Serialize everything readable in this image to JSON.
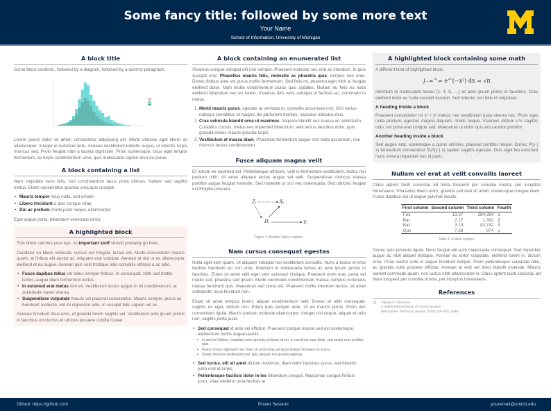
{
  "header": {
    "title": "Some fancy title: followed by some more text",
    "author": "Your Name",
    "institution": "School of Information, University of Michigan",
    "logo_text": "M",
    "colors": {
      "navy": "#00274c",
      "maize": "#ffcb05"
    }
  },
  "col1": {
    "block1": {
      "title": "A block title",
      "intro": "Some block contents, followed by a diagram, followed by a dummy paragraph.",
      "para": "Lorem ipsum dolor sit amet, consectetur adipiscing elit. Morbi ultricies eget libero ac ullamcorper. Integer et euismod ante. Aenean vestibulum lobortis augue, ut lobortis turpis rhoncus sed. Proin feugiat nibh a lacinia dignissim. Proin scelerisque, risus eget tempor fermentum, ex turpis condimentum urna, quis malesuada sapien arcu eu purus."
    },
    "block2": {
      "title": "A block containing a list",
      "para": "Nam vulputate nunc felis, non condimentum lacus porta ultrices. Nullam sed sagittis metus. Etiam consectetur gravida urna quis suscipit.",
      "items": [
        {
          "bold": "Mauris tempor",
          "text": " risus nulla, sed ornare"
        },
        {
          "bold": "Libero tincidunt",
          "text": " a duis congue vitae"
        },
        {
          "bold": "Dui ac pretium",
          "text": " morbi justo neque, ullamcorper"
        }
      ],
      "after": "Eget augue porta, bibendum venenatis tortor."
    },
    "block3": {
      "title": "A highlighted block",
      "p1a": "This block catches your eye, so ",
      "p1b": "important stuff",
      "p1c": " should probably go here.",
      "p2": "Curabitur eu libero vehicula, cursus est fringilla, luctus est. Morbi consectetur mauris quam, at finibus elit auctor ac. Aliquam erat volutpat. Aenean at nisl ut ex ullamcorper eleifend et eu augue. Aenean quis velit tristique odio convallis ultrices a ac odio.",
      "items": [
        {
          "bold": "Fusce dapibus tellus",
          "text": " vel tellus semper finibus. In consequat, nibh sed mattis luctus, augue diam fermentum lectus."
        },
        {
          "bold": "In euismod erat metus",
          "text": " non ex. Vestibulum luctus augue in mi condimentum, at sollicitudin lorem viverra."
        },
        {
          "bold": "Suspendisse vulputate",
          "text": " mauris vel placerat consectetur. Mauris semper, purus ac hendrerit molestie, elit mi dignissim odio, in suscipit felis sapien vel ex."
        }
      ],
      "p3": "Aenean tincidunt risus eros, at gravida lorem sagittis vel. Vestibulum ante ipsum primis in faucibus orci luctus et ultrices posuere cubilia Curae."
    }
  },
  "col2": {
    "block1": {
      "title": "A block containing an enumerated list",
      "pa": "Vivamus congue volutpat elit non semper. Praesent molestie nec erat ac interdum. In quis suscipit erat. ",
      "pb": "Phasellus mauris felis, molestie ac pharetra quis",
      "pc": ", tempus nec ante. Donec finibus ante vel purus mollis fermentum. Sed felis mi, pharetra eget nibh a, feugiat eleifend dolor. Nam mollis condimentum purus quis sodales. Nullam eu felis eu nulla eleifend bibendum nec eu lorem. Vivamus felis velit, volutpat ut facilisis ac, commodo in metus.",
      "items": [
        {
          "bold": "Morbi mauris purus",
          "text": ", egestas at vehicula et, convallis accumsan orci. Orci varius natoque penatibus et magnis dis parturient montes, nascetur ridiculus mus."
        },
        {
          "bold": "Cras vehicula blandit urna ut maximus",
          "text": ". Aliquam blandit nec massa ac sollicitudin. Curabitur cursus, metus nec imperdiet bibendum, velit lectus faucibus dolor, quis gravida metus mauris gravida turpis."
        },
        {
          "bold": "Vestibulum et massa diam",
          "text": ". Phasellus fermentum augue non nulla accumsan, non rhoncus lectus condimentum."
        }
      ]
    },
    "block2": {
      "title": "Fusce aliquam magna velit",
      "para": "Et rutrum ex euismod vel. Pellentesque ultricies, velit in fermentum vestibulum, lectus nisi pretium nibh, sit amet aliquam lectus augue vel velit. Suspendisse rhoncus massa porttitor augue feugiat molestie. Sed molestie ut orci nec malesuada. Sed ultricies feugiat est fringilla posuere.",
      "diagram": {
        "z": "Zᵢ",
        "x": "Xᵢ",
        "d": "Dᵢ",
        "y": "Yᵢ"
      },
      "caption": "Figure 1: Another figure caption."
    },
    "block3": {
      "title": "Nam cursus consequat egestas",
      "p1": "Nulla eget sem quam. Ut aliquam volutpat nisi vestibulum convallis. Nunc a lectus et eros facilisis hendrerit eu non urna. Interdum et malesuada fames ac ante ipsum primis in faucibus. Etiam sit amet velit eget sem euismod tristique. Praesent enim erat, porta vel mattis sed, pharetra sed ipsum. Morbi commodo condimentum massa, tempus venenatis massa hendrerit quis. Maecenas sed porta est. Praesent mollis interdum lectus, sit amet sollicitudin risus tincidunt non.",
      "p2": "Etiam sit amet tempus lorem, aliquet condimentum velit. Donec et nibh consequat, sagittis ex eget, dictum orci. Etiam quis semper ante. Ut eu mauris purus. Proin nec consectetur ligula. Mauris pretium molestie ullamcorper. Integer nisi neque, aliquet et odio non, sagittis porta justo.",
      "items": [
        {
          "bold": "Sed consequat",
          "text": " id ante vel efficitur. Praesent congue massa sed est scelerisque, elementum mollis augue iaculis."
        },
        {
          "bold": "Sed luctus, elit sit amet",
          "text": " dictum maximus, diam dolor faucibus purus, sed lobortis justo erat id turpis."
        },
        {
          "bold": "Pellentesque facilisis dolor in leo",
          "text": " bibendum congue. Maecenas congue finibus justo, vitae eleifend urna facilisis at."
        }
      ],
      "subitems": [
        "In sed est finibus, vulputate nunc gravida, pulvinar lorem. In maximus nunc dolor, sed auctor eros porttitor quis.",
        "Fusce ornare dignissim nisi. Nam sit amet risus vel lacus tempor tincidunt eu a arcu.",
        "Donec rhoncus vestibulum erat, quis aliquam leo gravida egestas."
      ]
    }
  },
  "col3": {
    "block1": {
      "title": "A highlighted block containing some math",
      "intro": "A different kind of highlighted block.",
      "equation": "∫₋∞^∞ e^(−x²) dx = √π",
      "p1": "Interdum et malesuada fames {1, 4, 9, …} ac ante ipsum primis in faucibus. Cras eleifend dolor eu nulla suscipit suscipit. Sed lobortis non felis id vulputate.",
      "h1": "A heading inside a block",
      "p2": "Praesent consectetur mi x² + y² metus, nec vestibulum justo viverra nec. Proin eget nulla pretium, egestas magna aliquam, mollis neque. Vivamus dictum uᵀv sagittis odio, vel porta erat congue sed. Maecenas ut dolor quis arcu auctor porttitor.",
      "h2": "Another heading inside a block",
      "p3": "Sed augue erat, scelerisque a purus ultricies, placerat porttitor neque. Donec P(y | x) fermentum consectetur ∇ₓP(y | x) sapien sagittis egestas. Duis eget leo euismod nunc viverra imperdiet nec id justo."
    },
    "block2": {
      "title": "Nullam vel erat at velit convallis laoreet",
      "p1": "Class aptent taciti sociosqu ad litora torquent per conubia nostra, per inceptos himenaeos. Phasellus libero enim, gravida sed erat sit amet, scelerisque congue diam. Fusce dapibus dui ut augue pulvinar iaculis.",
      "table": {
        "headers": [
          "First column",
          "Second column",
          "Third column",
          "Fourth"
        ],
        "rows": [
          [
            "Foo",
            "13.37",
            "384,394",
            "α"
          ],
          [
            "Bar",
            "2.17",
            "1,392",
            "β"
          ],
          [
            "Baz",
            "3.14",
            "83,742",
            "δ"
          ],
          [
            "Qux",
            "7.59",
            "974",
            "γ"
          ]
        ]
      },
      "caption": "Table 1: A table caption.",
      "p2": "Donec quis posuere ligula. Nunc feugiat elit a mi malesuada consequat. Sed imperdiet augue ac nibh aliquet tristique. Aenean eu tortor vulputate, eleifend lorem in, dictum urna. Proin auctor ante in augue tincidunt tempor. Proin pellentesque vulputate odio, ac gravida nulla posuere efficitur. Aenean at velit vel dolor blandit molestie. Mauris laoreet commodo quam, non luctus nibh ullamcorper in. Class aptent taciti sociosqu ad litora torquent per conubia nostra, per inceptos himenaeos."
    },
    "refs": {
      "title": "References",
      "items": [
        {
          "num": "[1]",
          "author": "Claude E. Shannon.",
          "title": "A mathematical theory of communication.",
          "venue": "Bell System Technical Journal, 27(3):379–423, 1948."
        }
      ]
    }
  },
  "footer": {
    "left": "Github: https://github.com",
    "center": "Poster Session",
    "right": "youremail@umich.edu"
  }
}
